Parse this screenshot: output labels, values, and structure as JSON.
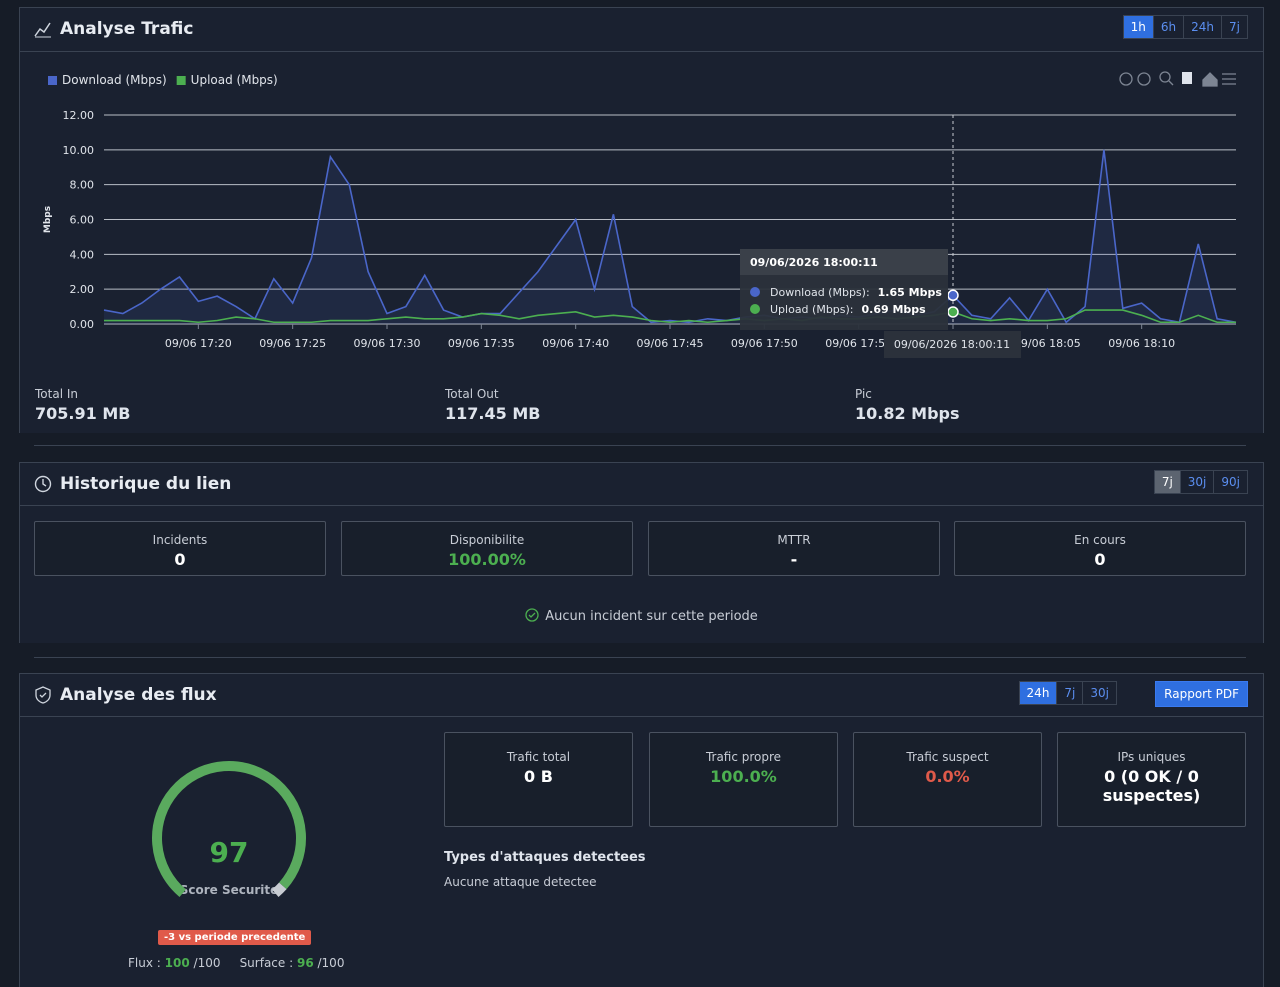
{
  "traffic": {
    "title": "Analyse Trafic",
    "ranges": [
      "1h",
      "6h",
      "24h",
      "7j"
    ],
    "active_range": 0,
    "stats": [
      {
        "label": "Total In",
        "value": "705.91 MB"
      },
      {
        "label": "Total Out",
        "value": "117.45 MB"
      },
      {
        "label": "Pic",
        "value": "10.82 Mbps"
      }
    ]
  },
  "chart_data": {
    "type": "line",
    "y_label": "Mbps",
    "grid": true,
    "legend": "top-left",
    "x": [
      "09/06 17:15",
      "09/06 17:16",
      "09/06 17:17",
      "09/06 17:18",
      "09/06 17:19",
      "09/06 17:20",
      "09/06 17:21",
      "09/06 17:22",
      "09/06 17:23",
      "09/06 17:24",
      "09/06 17:25",
      "09/06 17:26",
      "09/06 17:27",
      "09/06 17:28",
      "09/06 17:29",
      "09/06 17:30",
      "09/06 17:31",
      "09/06 17:32",
      "09/06 17:33",
      "09/06 17:34",
      "09/06 17:35",
      "09/06 17:36",
      "09/06 17:37",
      "09/06 17:38",
      "09/06 17:39",
      "09/06 17:40",
      "09/06 17:41",
      "09/06 17:42",
      "09/06 17:43",
      "09/06 17:44",
      "09/06 17:45",
      "09/06 17:46",
      "09/06 17:47",
      "09/06 17:48",
      "09/06 17:49",
      "09/06 17:50",
      "09/06 17:51",
      "09/06 17:52",
      "09/06 17:53",
      "09/06 17:54",
      "09/06 17:55",
      "09/06 17:56",
      "09/06 17:57",
      "09/06 17:58",
      "09/06 17:59",
      "09/06 18:00",
      "09/06 18:01",
      "09/06 18:02",
      "09/06 18:03",
      "09/06 18:04",
      "09/06 18:05",
      "09/06 18:06",
      "09/06 18:07",
      "09/06 18:08",
      "09/06 18:09",
      "09/06 18:10",
      "09/06 18:11",
      "09/06 18:12",
      "09/06 18:13",
      "09/06 18:14",
      "09/06 18:15"
    ],
    "xticks": [
      "09/06 17:20",
      "09/06 17:25",
      "09/06 17:30",
      "09/06 17:35",
      "09/06 17:40",
      "09/06 17:45",
      "09/06 17:50",
      "09/06 17:55",
      "09/06 18:00",
      "09/06 18:05",
      "09/06 18:10"
    ],
    "series": [
      {
        "name": "Download (Mbps)",
        "color": "#4a66c9",
        "values": [
          0.8,
          0.6,
          1.2,
          2.0,
          2.7,
          1.3,
          1.6,
          1.0,
          0.3,
          2.6,
          1.2,
          3.8,
          9.6,
          8.0,
          3.0,
          0.6,
          1.0,
          2.8,
          0.8,
          0.4,
          0.6,
          0.6,
          1.8,
          3.0,
          4.5,
          6.0,
          2.0,
          6.3,
          1.0,
          0.1,
          0.2,
          0.1,
          0.3,
          0.2,
          0.4,
          0.5,
          0.3,
          0.4,
          0.3,
          0.5,
          0.4,
          0.6,
          0.8,
          0.5,
          0.7,
          1.65,
          0.5,
          0.3,
          1.5,
          0.2,
          2.0,
          0.1,
          1.0,
          10.0,
          0.9,
          1.2,
          0.3,
          0.1,
          4.6,
          0.3,
          0.1
        ]
      },
      {
        "name": "Upload (Mbps)",
        "color": "#4caf50",
        "values": [
          0.2,
          0.2,
          0.2,
          0.2,
          0.2,
          0.1,
          0.2,
          0.4,
          0.3,
          0.1,
          0.1,
          0.1,
          0.2,
          0.2,
          0.2,
          0.3,
          0.4,
          0.3,
          0.3,
          0.4,
          0.6,
          0.5,
          0.3,
          0.5,
          0.6,
          0.7,
          0.4,
          0.5,
          0.4,
          0.2,
          0.1,
          0.2,
          0.1,
          0.2,
          0.3,
          0.2,
          0.3,
          0.2,
          0.4,
          0.3,
          0.3,
          0.4,
          0.3,
          0.4,
          0.5,
          0.69,
          0.3,
          0.2,
          0.3,
          0.2,
          0.2,
          0.3,
          0.8,
          0.8,
          0.8,
          0.5,
          0.1,
          0.1,
          0.5,
          0.1,
          0.1
        ]
      }
    ],
    "ylim": [
      0,
      12
    ],
    "yticks": [
      {
        "value": 0,
        "label": "0.00"
      },
      {
        "value": 2,
        "label": "2.00"
      },
      {
        "value": 4,
        "label": "4.00"
      },
      {
        "value": 6,
        "label": "6.00"
      },
      {
        "value": 8,
        "label": "8.00"
      },
      {
        "value": 10,
        "label": "10.00"
      },
      {
        "value": 12,
        "label": "12.00"
      }
    ],
    "tooltip": {
      "index": 45,
      "title": "09/06/2026 18:00:11",
      "rows": [
        {
          "label": "Download (Mbps):",
          "value": "1.65 Mbps"
        },
        {
          "label": "Upload (Mbps):",
          "value": "0.69 Mbps"
        }
      ]
    }
  },
  "history": {
    "title": "Historique du lien",
    "ranges": [
      "7j",
      "30j",
      "90j"
    ],
    "cards": [
      {
        "label": "Incidents",
        "value": "0"
      },
      {
        "label": "Disponibilite",
        "value": "100.00%"
      },
      {
        "label": "MTTR",
        "value": "-"
      },
      {
        "label": "En cours",
        "value": "0"
      }
    ],
    "message": "Aucun incident sur cette periode"
  },
  "flows": {
    "title": "Analyse des flux",
    "ranges": [
      "24h",
      "7j",
      "30j"
    ],
    "report_button": "Rapport PDF",
    "gauge": {
      "value": 97,
      "range": [
        0,
        100
      ],
      "label": "Score Securite"
    },
    "trend": "-3 vs periode precedente",
    "flux_label": "Flux :",
    "flux_value": "100",
    "flux_max": "/100",
    "surface_label": "Surface :",
    "surface_value": "96",
    "surface_max": "/100",
    "cards": [
      {
        "label": "Trafic total",
        "value": "0 B"
      },
      {
        "label": "Trafic propre",
        "value": "100.0%"
      },
      {
        "label": "Trafic suspect",
        "value": "0.0%"
      },
      {
        "label": "IPs uniques",
        "value": "0 (0 OK / 0 suspectes)"
      }
    ],
    "attacks_title": "Types d'attaques detectees",
    "attacks_text": "Aucune attaque detectee"
  }
}
